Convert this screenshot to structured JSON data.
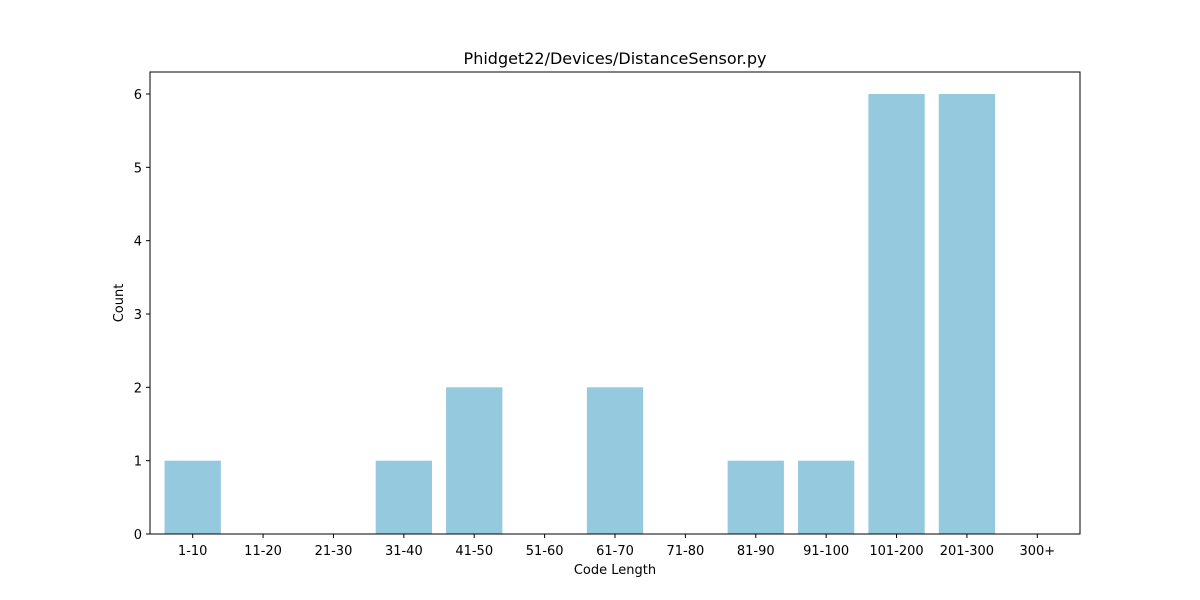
{
  "chart_data": {
    "type": "bar",
    "title": "Phidget22/Devices/DistanceSensor.py",
    "xlabel": "Code Length",
    "ylabel": "Count",
    "categories": [
      "1-10",
      "11-20",
      "21-30",
      "31-40",
      "41-50",
      "51-60",
      "61-70",
      "71-80",
      "81-90",
      "91-100",
      "101-200",
      "201-300",
      "300+"
    ],
    "values": [
      1,
      0,
      0,
      1,
      2,
      0,
      2,
      0,
      1,
      1,
      6,
      6,
      0
    ],
    "yticks": [
      0,
      1,
      2,
      3,
      4,
      5,
      6
    ],
    "ylim": [
      0,
      6.3
    ],
    "grid": false,
    "bar_color": "#95c9de"
  }
}
